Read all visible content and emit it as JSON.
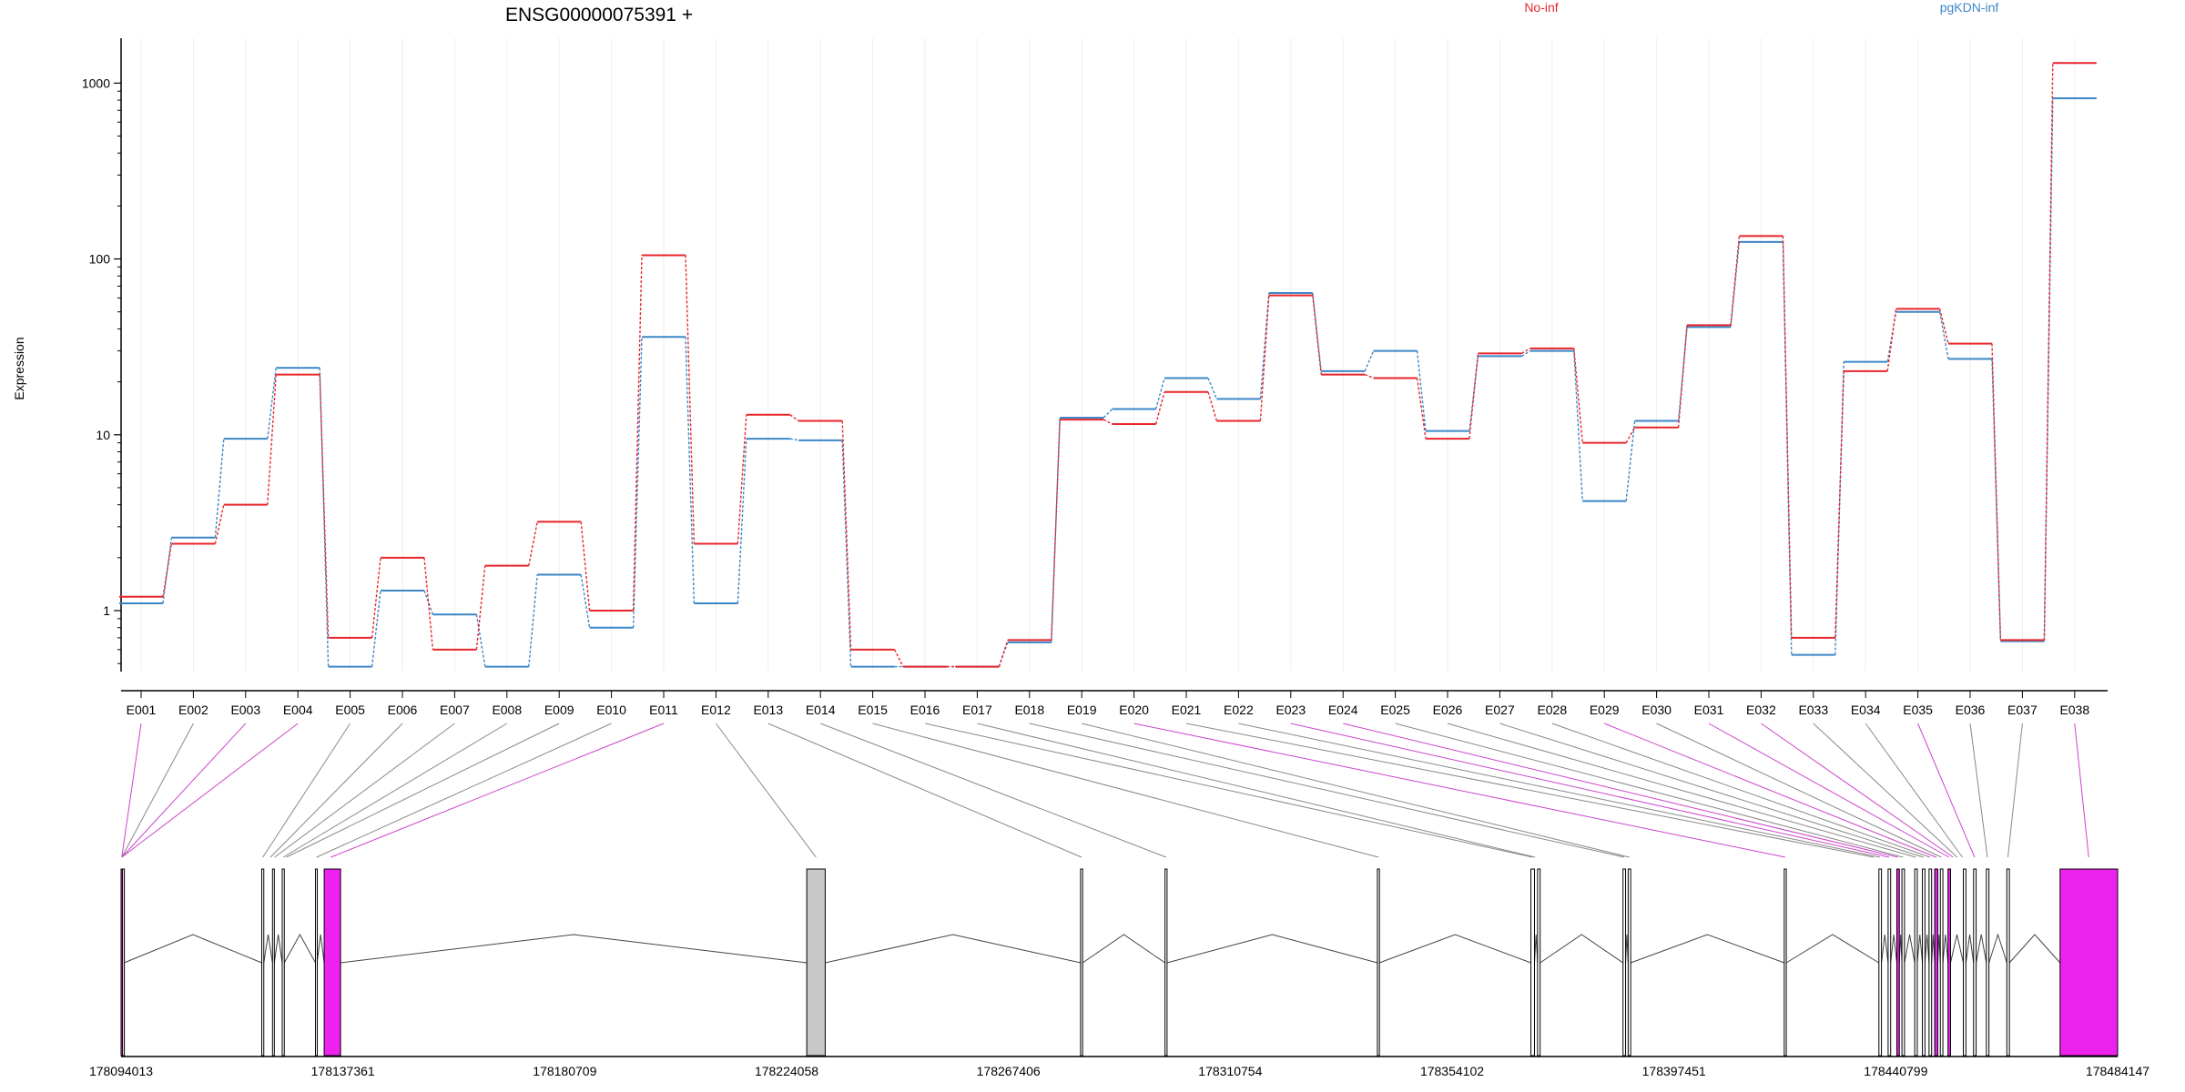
{
  "title": "ENSG00000075391 +",
  "ylabel": "Expression",
  "colors": {
    "no_inf": "#e8262b",
    "pgkdn_inf": "#3c86c7",
    "constitutive_exon": "#ee22ee",
    "gray_exon": "#c8c8c8",
    "connector_magenta": "#cc44cc",
    "connector_gray": "#888888"
  },
  "chart_data": {
    "type": "line",
    "title": "ENSG00000075391 +",
    "xlabel": "",
    "ylabel": "Expression",
    "yscale": "log",
    "yticks": [
      1,
      10,
      100,
      1000
    ],
    "ytick_labels": [
      "1",
      "10",
      "100",
      "1000"
    ],
    "ylim": [
      0.45,
      1800
    ],
    "grid": "vertical lines at each exon",
    "legend": "top-right",
    "categories": [
      "E001",
      "E002",
      "E003",
      "E004",
      "E005",
      "E006",
      "E007",
      "E008",
      "E009",
      "E010",
      "E011",
      "E012",
      "E013",
      "E014",
      "E015",
      "E016",
      "E017",
      "E018",
      "E019",
      "E020",
      "E021",
      "E022",
      "E023",
      "E024",
      "E025",
      "E026",
      "E027",
      "E028",
      "E029",
      "E030",
      "E031",
      "E032",
      "E033",
      "E034",
      "E035",
      "E036",
      "E037",
      "E038"
    ],
    "series": [
      {
        "name": "No-inf",
        "color": "#e8262b",
        "values": [
          1.2,
          2.4,
          4.0,
          22,
          0.7,
          2.0,
          0.6,
          1.8,
          3.2,
          1.0,
          105,
          2.4,
          13,
          12,
          0.6,
          0.48,
          0.48,
          0.68,
          12.2,
          11.5,
          17.5,
          12,
          62,
          22,
          21,
          9.5,
          29,
          31,
          9,
          11,
          42,
          135,
          0.7,
          23,
          52,
          33,
          0.68,
          1300
        ]
      },
      {
        "name": "pgKDN-inf",
        "color": "#3c86c7",
        "values": [
          1.1,
          2.6,
          9.5,
          24,
          0.48,
          1.3,
          0.95,
          0.48,
          1.6,
          0.8,
          36,
          1.1,
          9.5,
          9.3,
          0.48,
          0.48,
          0.48,
          0.66,
          12.5,
          14,
          21,
          16,
          64,
          23,
          30,
          10.5,
          28,
          30,
          4.2,
          12,
          41,
          125,
          0.56,
          26,
          50,
          27,
          0.67,
          820
        ]
      }
    ],
    "gene_model": {
      "coordinate_labels": [
        "178094013",
        "178137361",
        "178180709",
        "178224058",
        "178267406",
        "178310754",
        "178354102",
        "178397451",
        "178440799",
        "178484147"
      ],
      "coordinate_range": [
        178094013,
        178484147
      ],
      "exons": [
        {
          "start": 178094013,
          "end": 178094300,
          "type": "magenta"
        },
        {
          "start": 178094300,
          "end": 178094600,
          "type": "white"
        },
        {
          "start": 178121500,
          "end": 178121900,
          "type": "white"
        },
        {
          "start": 178123600,
          "end": 178123950,
          "type": "white"
        },
        {
          "start": 178125500,
          "end": 178125900,
          "type": "white"
        },
        {
          "start": 178132000,
          "end": 178132300,
          "type": "white"
        },
        {
          "start": 178133700,
          "end": 178136900,
          "type": "magenta"
        },
        {
          "start": 178228000,
          "end": 178231600,
          "type": "gray"
        },
        {
          "start": 178281500,
          "end": 178281900,
          "type": "white"
        },
        {
          "start": 178298000,
          "end": 178298400,
          "type": "white"
        },
        {
          "start": 178339500,
          "end": 178339900,
          "type": "white"
        },
        {
          "start": 178369500,
          "end": 178370200,
          "type": "white"
        },
        {
          "start": 178370800,
          "end": 178371300,
          "type": "white"
        },
        {
          "start": 178387500,
          "end": 178388000,
          "type": "white"
        },
        {
          "start": 178388500,
          "end": 178389000,
          "type": "white"
        },
        {
          "start": 178419000,
          "end": 178419400,
          "type": "white"
        },
        {
          "start": 178437500,
          "end": 178438000,
          "type": "white"
        },
        {
          "start": 178439300,
          "end": 178439800,
          "type": "white"
        },
        {
          "start": 178441000,
          "end": 178441500,
          "type": "magenta"
        },
        {
          "start": 178442000,
          "end": 178442500,
          "type": "white"
        },
        {
          "start": 178444500,
          "end": 178445000,
          "type": "white"
        },
        {
          "start": 178446000,
          "end": 178446500,
          "type": "white"
        },
        {
          "start": 178447300,
          "end": 178447800,
          "type": "white"
        },
        {
          "start": 178448400,
          "end": 178449000,
          "type": "magenta"
        },
        {
          "start": 178449500,
          "end": 178450000,
          "type": "white"
        },
        {
          "start": 178451000,
          "end": 178451500,
          "type": "magenta"
        },
        {
          "start": 178454000,
          "end": 178454500,
          "type": "white"
        },
        {
          "start": 178456000,
          "end": 178456500,
          "type": "white"
        },
        {
          "start": 178458500,
          "end": 178459000,
          "type": "white"
        },
        {
          "start": 178462500,
          "end": 178463000,
          "type": "white"
        },
        {
          "start": 178472900,
          "end": 178484147,
          "type": "magenta"
        }
      ],
      "connector_targets": [
        {
          "coord": 178094150,
          "type": "magenta"
        },
        {
          "coord": 178094150,
          "type": "gray"
        },
        {
          "coord": 178094150,
          "type": "magenta"
        },
        {
          "coord": 178094150,
          "type": "magenta"
        },
        {
          "coord": 178121700,
          "type": "gray"
        },
        {
          "coord": 178123200,
          "type": "gray"
        },
        {
          "coord": 178124000,
          "type": "gray"
        },
        {
          "coord": 178125700,
          "type": "gray"
        },
        {
          "coord": 178126300,
          "type": "gray"
        },
        {
          "coord": 178132200,
          "type": "gray"
        },
        {
          "coord": 178135000,
          "type": "magenta"
        },
        {
          "coord": 178229800,
          "type": "gray"
        },
        {
          "coord": 178281700,
          "type": "gray"
        },
        {
          "coord": 178298200,
          "type": "gray"
        },
        {
          "coord": 178339700,
          "type": "gray"
        },
        {
          "coord": 178369800,
          "type": "gray"
        },
        {
          "coord": 178370300,
          "type": "gray"
        },
        {
          "coord": 178387700,
          "type": "gray"
        },
        {
          "coord": 178388700,
          "type": "gray"
        },
        {
          "coord": 178419200,
          "type": "magenta"
        },
        {
          "coord": 178436500,
          "type": "gray"
        },
        {
          "coord": 178437700,
          "type": "gray"
        },
        {
          "coord": 178439500,
          "type": "magenta"
        },
        {
          "coord": 178441200,
          "type": "magenta"
        },
        {
          "coord": 178442200,
          "type": "gray"
        },
        {
          "coord": 178444700,
          "type": "gray"
        },
        {
          "coord": 178446200,
          "type": "gray"
        },
        {
          "coord": 178447500,
          "type": "gray"
        },
        {
          "coord": 178448700,
          "type": "magenta"
        },
        {
          "coord": 178449700,
          "type": "gray"
        },
        {
          "coord": 178451200,
          "type": "magenta"
        },
        {
          "coord": 178452000,
          "type": "magenta"
        },
        {
          "coord": 178452800,
          "type": "gray"
        },
        {
          "coord": 178453800,
          "type": "gray"
        },
        {
          "coord": 178456200,
          "type": "magenta"
        },
        {
          "coord": 178458700,
          "type": "gray"
        },
        {
          "coord": 178462700,
          "type": "gray"
        },
        {
          "coord": 178478500,
          "type": "magenta"
        }
      ]
    }
  }
}
